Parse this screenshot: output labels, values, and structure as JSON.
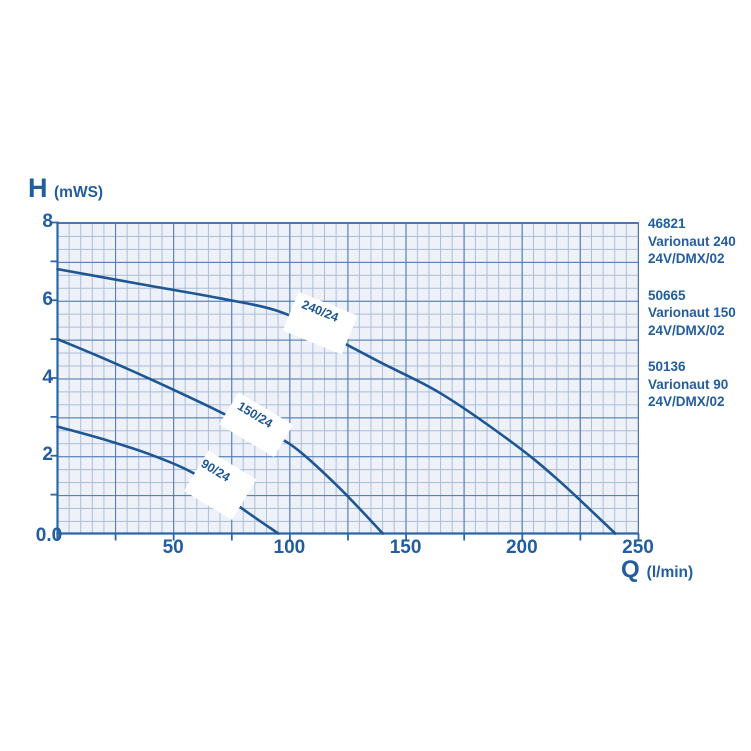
{
  "axis_titles": {
    "y_main": "H",
    "y_unit": "(mWS)",
    "x_main": "Q",
    "x_unit": "(l/min)"
  },
  "legend": {
    "items": [
      {
        "code": "46821",
        "name": "Varionaut 240",
        "variant": "24V/DMX/02"
      },
      {
        "code": "50665",
        "name": "Varionaut 150",
        "variant": "24V/DMX/02"
      },
      {
        "code": "50136",
        "name": "Varionaut 90",
        "variant": "24V/DMX/02"
      }
    ]
  },
  "colors": {
    "text": "#215d9f",
    "curve": "#1d5793",
    "axis": "#2c66a7",
    "grid_major": "#4b77b1",
    "grid_minor": "#aabdd9",
    "plot_background": "#eef1f8"
  },
  "chart_data": {
    "type": "line",
    "title": "",
    "xlabel": "Q (l/min)",
    "ylabel": "H (mWS)",
    "xlim": [
      0,
      250
    ],
    "ylim": [
      0,
      8
    ],
    "grid": "on",
    "x_minor_tick_step": 25,
    "y_minor_tick_step": 1,
    "x_tick_labels": [
      {
        "value": 0,
        "label": "0.0"
      },
      {
        "value": 50,
        "label": "50"
      },
      {
        "value": 100,
        "label": "100"
      },
      {
        "value": 150,
        "label": "150"
      },
      {
        "value": 200,
        "label": "200"
      },
      {
        "value": 250,
        "label": "250"
      }
    ],
    "y_tick_labels": [
      {
        "value": 8,
        "label": "8"
      },
      {
        "value": 6,
        "label": "6"
      },
      {
        "value": 4,
        "label": "4"
      },
      {
        "value": 2,
        "label": "2"
      }
    ],
    "series": [
      {
        "name": "240/24",
        "points": [
          [
            0,
            6.8
          ],
          [
            40,
            6.37
          ],
          [
            70,
            6.05
          ],
          [
            95,
            5.72
          ],
          [
            115,
            5.15
          ],
          [
            139,
            4.4
          ],
          [
            165,
            3.6
          ],
          [
            195,
            2.37
          ],
          [
            215,
            1.4
          ],
          [
            240,
            0
          ]
        ],
        "label": {
          "text": "240/24",
          "q": 113,
          "h": 5.72,
          "angle": 22,
          "gap_q": 113
        }
      },
      {
        "name": "150/24",
        "points": [
          [
            0,
            5.0
          ],
          [
            20,
            4.5
          ],
          [
            40,
            3.97
          ],
          [
            64,
            3.3
          ],
          [
            85,
            2.68
          ],
          [
            100,
            2.3
          ],
          [
            120,
            1.25
          ],
          [
            140,
            0
          ]
        ],
        "label": {
          "text": "150/24",
          "q": 85,
          "h": 3.05,
          "angle": 31,
          "gap_q": 86
        }
      },
      {
        "name": "90/24",
        "points": [
          [
            0,
            2.75
          ],
          [
            20,
            2.42
          ],
          [
            40,
            2.03
          ],
          [
            60,
            1.5
          ],
          [
            79,
            0.66
          ],
          [
            95,
            0
          ]
        ],
        "label": {
          "text": "90/24",
          "q": 68,
          "h": 1.62,
          "angle": 31,
          "gap_q": 72
        }
      }
    ]
  }
}
